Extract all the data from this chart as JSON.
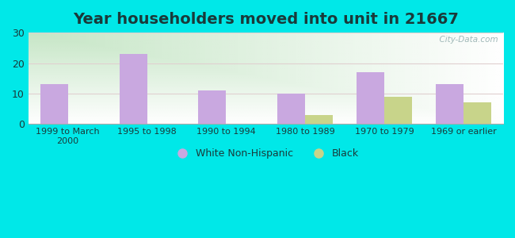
{
  "title": "Year householders moved into unit in 21667",
  "categories": [
    "1999 to March\n2000",
    "1995 to 1998",
    "1990 to 1994",
    "1980 to 1989",
    "1970 to 1979",
    "1969 or earlier"
  ],
  "white_values": [
    13,
    23,
    11,
    10,
    17,
    13
  ],
  "black_values": [
    0,
    0,
    0,
    3,
    9,
    7
  ],
  "white_color": "#c9a8e0",
  "black_color": "#c8d48a",
  "ylim": [
    0,
    30
  ],
  "yticks": [
    0,
    10,
    20,
    30
  ],
  "bg_outer": "#00e8e8",
  "watermark": "  City-Data.com",
  "legend_labels": [
    "White Non-Hispanic",
    "Black"
  ],
  "title_fontsize": 14,
  "title_color": "#1a3a3a",
  "bar_width": 0.35
}
